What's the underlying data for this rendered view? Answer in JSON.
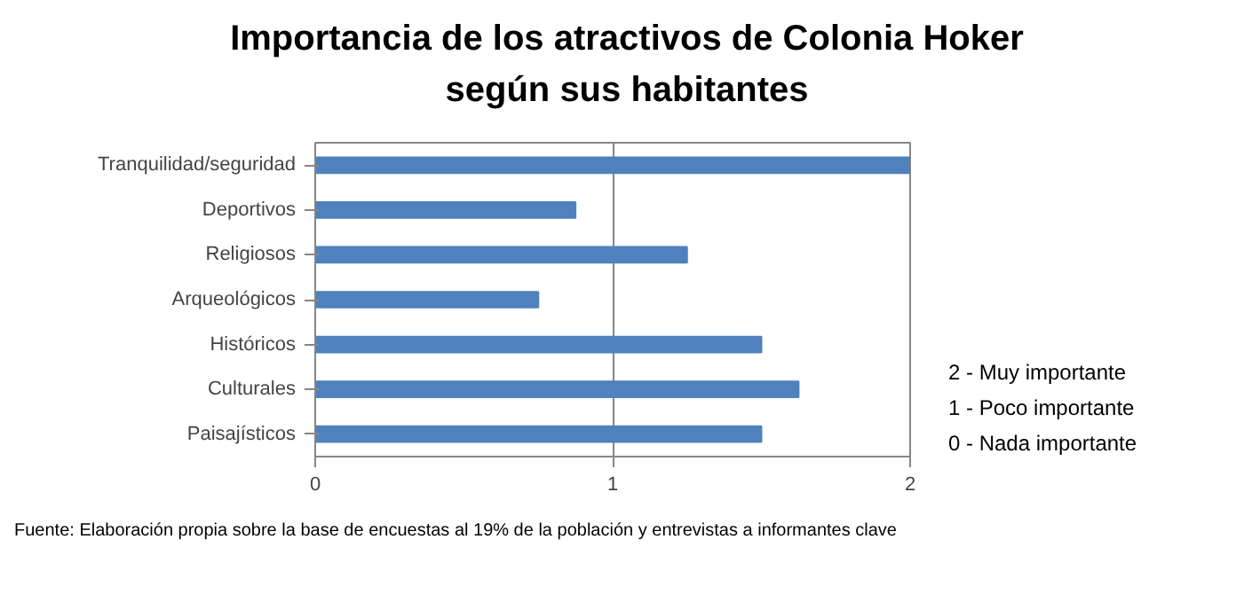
{
  "chart_data": {
    "type": "bar",
    "orientation": "horizontal",
    "title": "Importancia de los atractivos de Colonia Hoker\nsegún sus habitantes",
    "categories": [
      "Tranquilidad/seguridad",
      "Deportivos",
      "Religiosos",
      "Arqueológicos",
      "Históricos",
      "Culturales",
      "Paisajísticos"
    ],
    "values": [
      2,
      0.875,
      1.25,
      0.75,
      1.5,
      1.625,
      1.5
    ],
    "color": "#4f81bd",
    "xlim": [
      0,
      2
    ],
    "xticks": [
      0,
      1,
      2
    ],
    "grid": "x",
    "annotations": [
      "2 - Muy importante",
      "1 - Poco importante",
      "0 - Nada importante",
      "Fuente: Elaboración propia sobre la base de encuestas al 19%  de la población y entrevistas a informantes clave"
    ]
  }
}
